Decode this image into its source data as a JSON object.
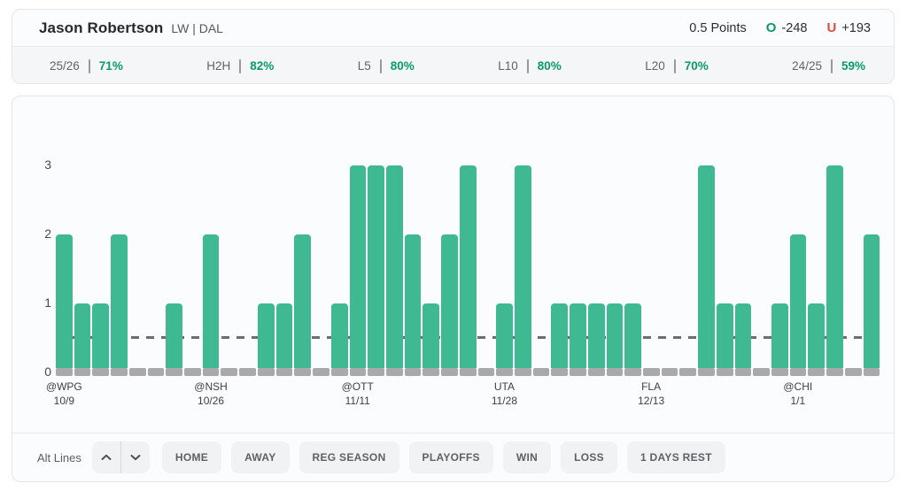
{
  "header": {
    "player_name": "Jason Robertson",
    "position_team": "LW | DAL",
    "line": "0.5 Points",
    "over": {
      "label": "O",
      "odds": "-248"
    },
    "under": {
      "label": "U",
      "odds": "+193"
    }
  },
  "stats": [
    {
      "label": "25/26",
      "value": "71%"
    },
    {
      "label": "H2H",
      "value": "82%"
    },
    {
      "label": "L5",
      "value": "80%"
    },
    {
      "label": "L10",
      "value": "80%"
    },
    {
      "label": "L20",
      "value": "70%"
    },
    {
      "label": "24/25",
      "value": "59%"
    }
  ],
  "chart_data": {
    "type": "bar",
    "values": [
      2,
      1,
      1,
      2,
      0,
      0,
      1,
      0,
      2,
      0,
      0,
      1,
      1,
      2,
      0,
      1,
      3,
      3,
      3,
      2,
      1,
      2,
      3,
      0,
      1,
      3,
      0,
      1,
      1,
      1,
      1,
      1,
      0,
      0,
      0,
      3,
      1,
      1,
      0,
      1,
      2,
      1,
      3,
      0,
      2
    ],
    "x_tick_labels": [
      {
        "index": 0,
        "team": "@WPG",
        "date": "10/9"
      },
      {
        "index": 8,
        "team": "@NSH",
        "date": "10/26"
      },
      {
        "index": 16,
        "team": "@OTT",
        "date": "11/11"
      },
      {
        "index": 24,
        "team": "UTA",
        "date": "11/28"
      },
      {
        "index": 32,
        "team": "FLA",
        "date": "12/13"
      },
      {
        "index": 40,
        "team": "@CHI",
        "date": "1/1"
      }
    ],
    "y_ticks": [
      0,
      1,
      2,
      3
    ],
    "ylim": [
      0,
      3
    ],
    "threshold": 0.5,
    "grid": "off",
    "colors": {
      "bar": "#3eb991",
      "zero_stub": "#a9a9ab",
      "threshold_line": "#6b6e71",
      "over_green": "#0a9b68",
      "under_red": "#e8453e"
    }
  },
  "controls": {
    "alt_lines_label": "Alt Lines",
    "filters": [
      "HOME",
      "AWAY",
      "REG SEASON",
      "PLAYOFFS",
      "WIN",
      "LOSS",
      "1 DAYS REST"
    ]
  }
}
